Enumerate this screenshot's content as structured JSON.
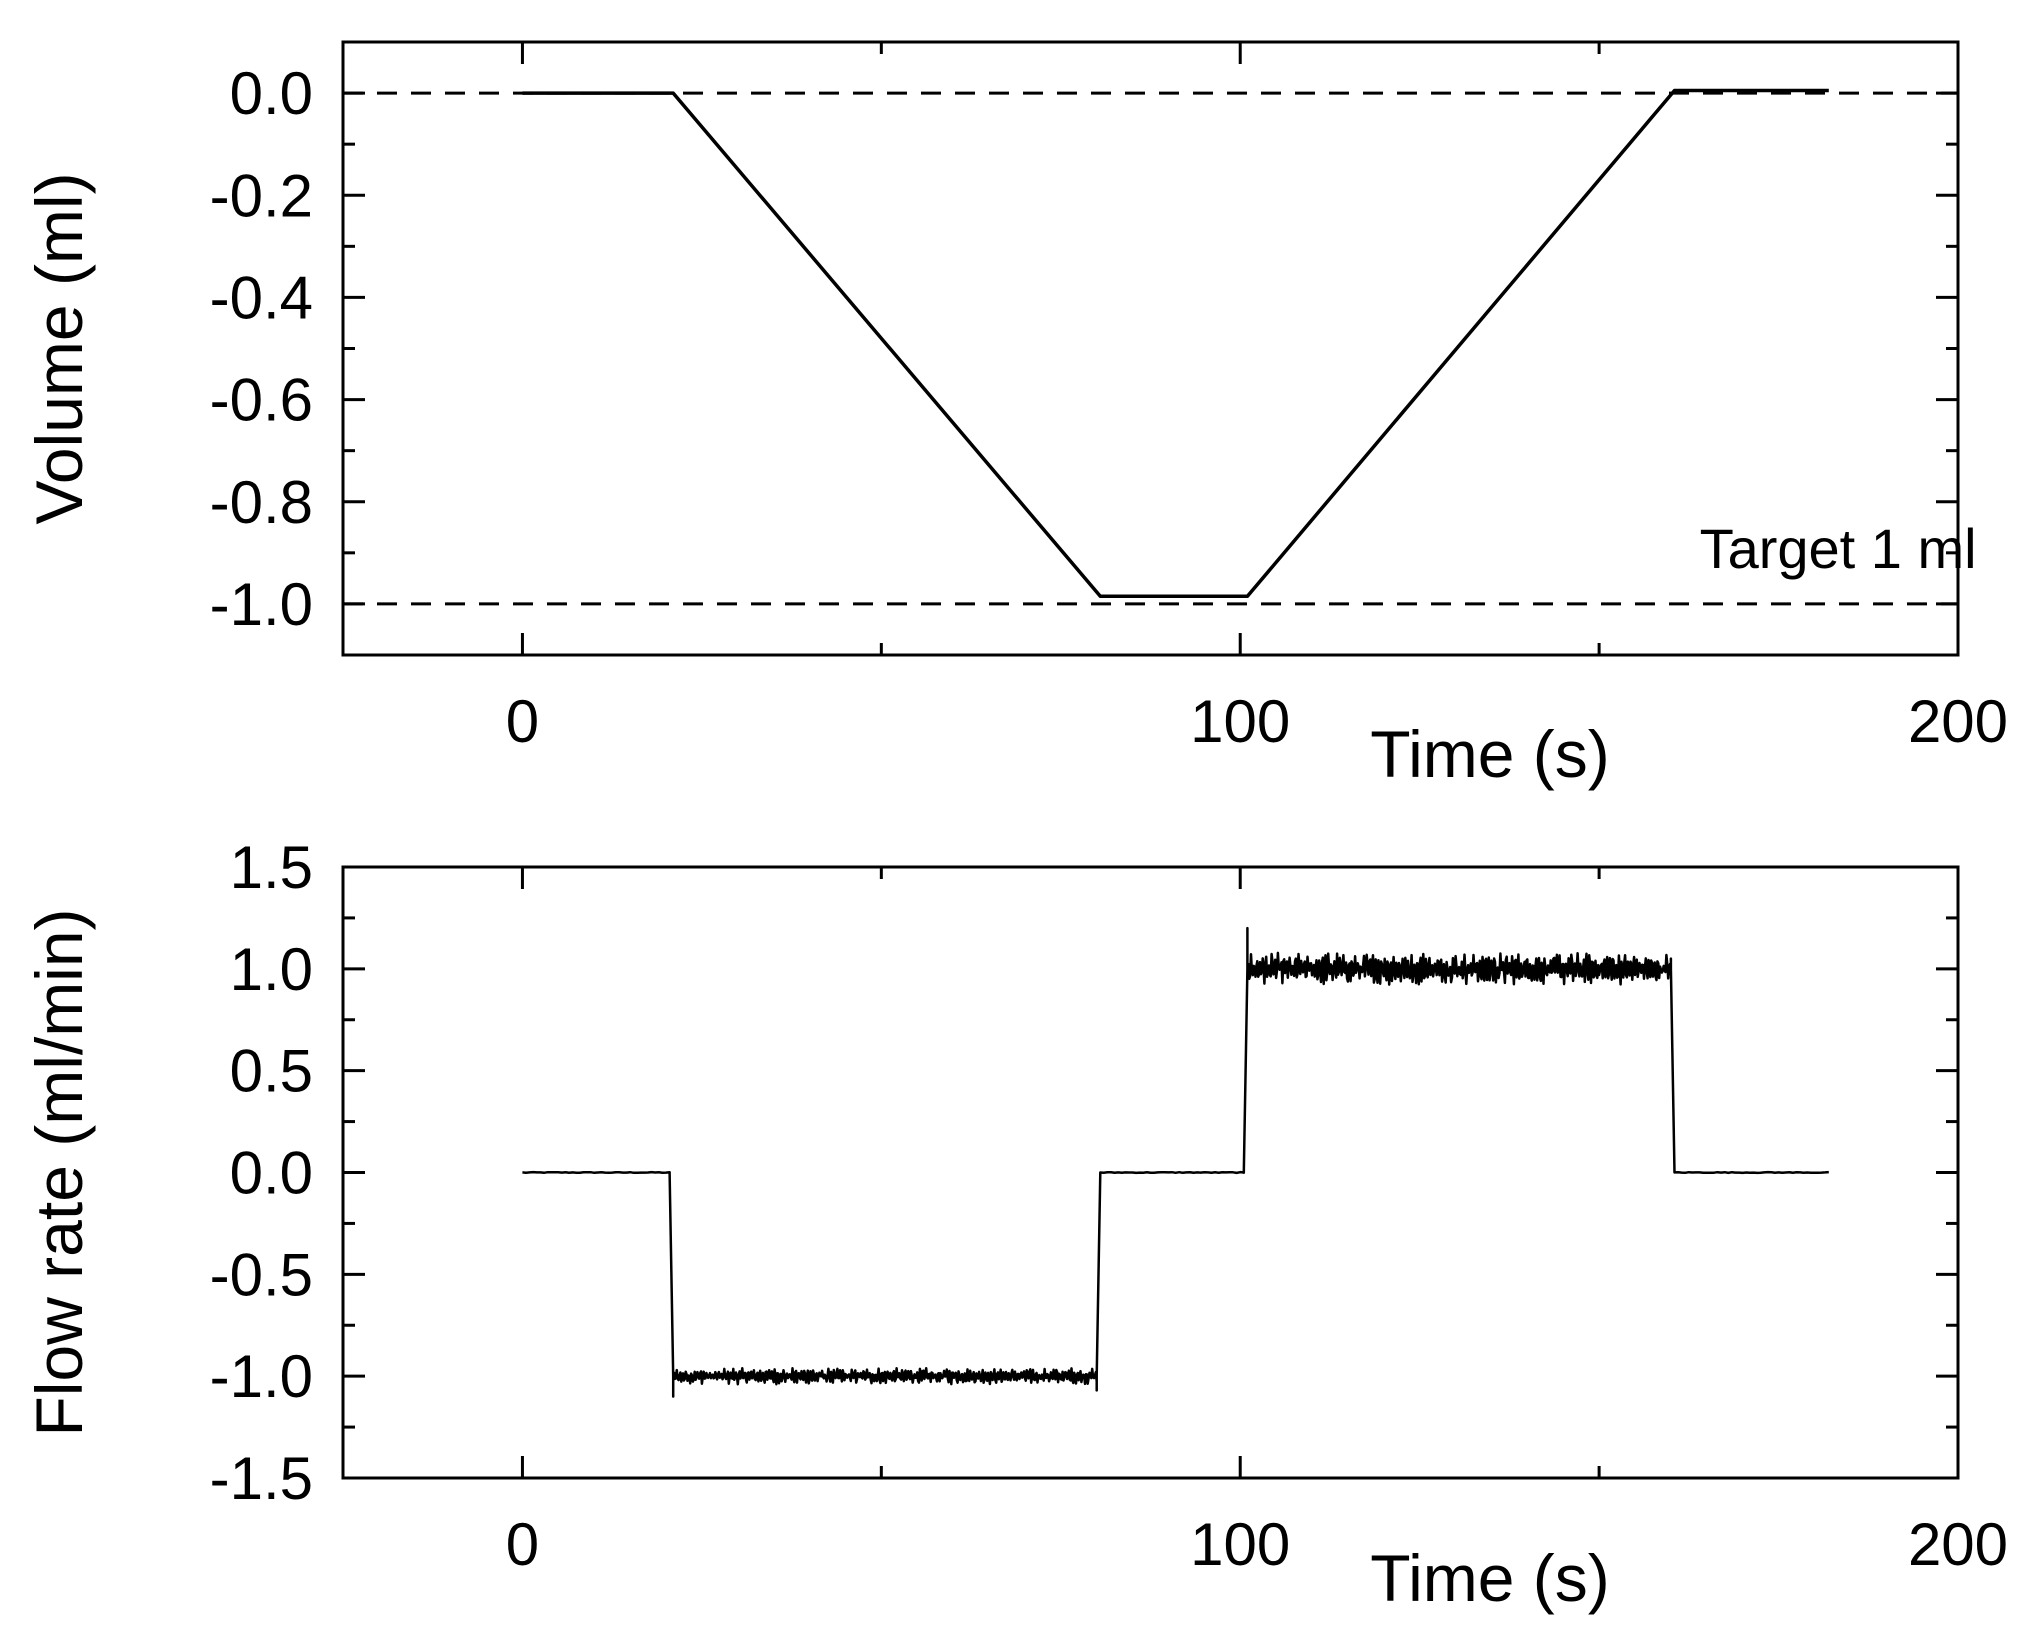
{
  "chart_data": [
    {
      "type": "line",
      "xlabel": "Time (s)",
      "ylabel": "Volume (ml)",
      "xlim": [
        -25,
        200
      ],
      "ylim": [
        -1.1,
        0.1
      ],
      "x_ticks": [
        0,
        100,
        200
      ],
      "x_tick_labels": [
        "0",
        "100",
        "200"
      ],
      "y_ticks": [
        0.0,
        -0.2,
        -0.4,
        -0.6,
        -0.8,
        -1.0
      ],
      "y_tick_labels": [
        "0.0",
        "-0.2",
        "-0.4",
        "-0.6",
        "-0.8",
        "-1.0"
      ],
      "grid": false,
      "reference_lines": [
        {
          "y": 0.0,
          "style": "dashed"
        },
        {
          "y": -1.0,
          "style": "dashed"
        }
      ],
      "annotations": [
        {
          "text": "Target 1 ml",
          "x": 164,
          "y": -0.93
        }
      ],
      "series": [
        {
          "x": [
            0,
            21,
            80.5,
            101,
            160.5,
            182
          ],
          "y": [
            0.0,
            0.0,
            -0.985,
            -0.985,
            0.005,
            0.005
          ]
        }
      ]
    },
    {
      "type": "line",
      "xlabel": "Time (s)",
      "ylabel": "Flow rate (ml/min)",
      "xlim": [
        -25,
        200
      ],
      "ylim": [
        -1.5,
        1.5
      ],
      "x_ticks": [
        0,
        100,
        200
      ],
      "x_tick_labels": [
        "0",
        "100",
        "200"
      ],
      "y_ticks": [
        1.5,
        1.0,
        0.5,
        0.0,
        -0.5,
        -1.0,
        -1.5
      ],
      "y_tick_labels": [
        "1.5",
        "1.0",
        "0.5",
        "0.0",
        "-0.5",
        "-1.0",
        "-1.5"
      ],
      "grid": false,
      "series": [
        {
          "x": [
            0,
            20.5,
            21,
            80,
            80.5,
            100,
            100.5,
            101,
            160,
            160.5,
            182
          ],
          "y": [
            0.0,
            0.0,
            -1.0,
            -1.0,
            0.0,
            0.0,
            0.0,
            1.0,
            1.0,
            0.0,
            0.0
          ],
          "noise": [
            {
              "x_from": 21,
              "x_to": 80,
              "amplitude": 0.04
            },
            {
              "x_from": 101,
              "x_to": 160,
              "amplitude": 0.08
            }
          ],
          "spikes": [
            {
              "x": 21,
              "y": -1.1
            },
            {
              "x": 101,
              "y": 1.2
            },
            {
              "x": 80,
              "y": -1.07
            },
            {
              "x": 160,
              "y": 1.05
            }
          ]
        }
      ]
    }
  ]
}
